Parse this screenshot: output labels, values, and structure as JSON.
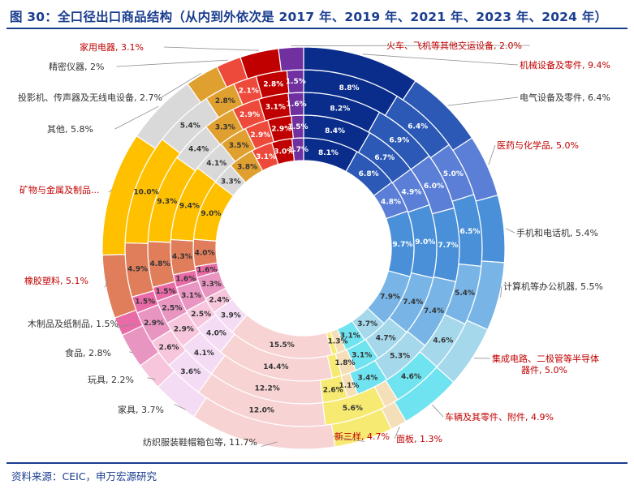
{
  "title": "图 30：全口径出口商品结构（从内到外依次是 2017 年、2019 年、2021 年、2023 年、2024 年）",
  "source": "资料来源：CEIC，申万宏源研究",
  "chart_data": {
    "type": "pie",
    "subtype": "multi-ring donut",
    "rings_inner_to_outer": [
      "2017 年",
      "2019 年",
      "2021 年",
      "2023 年",
      "2024 年"
    ],
    "direction": "clockwise from top",
    "categories": [
      {
        "name": "机械设备及零件",
        "outer_label": "机械设备及零件, 9.4%",
        "color": "#0a2d8c",
        "label_color": "#c00000",
        "values": [
          8.1,
          8.4,
          8.2,
          8.8,
          9.4
        ]
      },
      {
        "name": "电气设备及零件",
        "outer_label": "电气设备及零件, 6.4%",
        "color": "#2b59b5",
        "label_color": "#333333",
        "values": [
          6.8,
          6.7,
          6.9,
          6.4,
          6.4
        ]
      },
      {
        "name": "医药与化学品",
        "outer_label": "医药与化学品, 5.0%",
        "color": "#5b7fd6",
        "label_color": "#c00000",
        "values": [
          4.8,
          4.9,
          6.0,
          5.0,
          5.0
        ]
      },
      {
        "name": "手机和电话机",
        "outer_label": "手机和电话机, 5.4%",
        "color": "#4a90d9",
        "label_color": "#333333",
        "values": [
          9.7,
          9.0,
          7.7,
          6.5,
          5.4
        ]
      },
      {
        "name": "计算机等办公机器",
        "outer_label": "计算机等办公机器, 5.5%",
        "color": "#78b5e6",
        "label_color": "#333333",
        "values": [
          7.9,
          7.4,
          7.4,
          5.4,
          5.5
        ]
      },
      {
        "name": "集成电路、二极管等半导体器件",
        "outer_label": "集成电路、二极管等半导体器件, 5.0%",
        "color": "#a6d8ec",
        "label_color": "#c00000",
        "values": [
          3.7,
          4.7,
          5.3,
          4.6,
          5.0
        ]
      },
      {
        "name": "车辆及其零件、附件",
        "outer_label": "车辆及其零件、附件, 4.9%",
        "color": "#6fe3ef",
        "label_color": "#c00000",
        "values": [
          3.1,
          3.1,
          3.4,
          4.6,
          4.9
        ]
      },
      {
        "name": "面板",
        "outer_label": "面板, 1.3%",
        "color": "#f5dfb8",
        "label_color": "#c00000",
        "values": [
          1.3,
          1.8,
          1.1,
          1.3,
          1.3
        ]
      },
      {
        "name": "新三样",
        "outer_label": "新三样, 4.7%",
        "color": "#f7ea72",
        "label_color": "#c00000",
        "values": [
          0.8,
          1.2,
          2.6,
          5.6,
          4.7
        ]
      },
      {
        "name": "纺织服装鞋帽箱包等",
        "outer_label": "纺织服装鞋帽箱包等, 11.7%",
        "color": "#f8d3d3",
        "label_color": "#333333",
        "values": [
          15.5,
          14.4,
          12.2,
          12.0,
          11.7
        ]
      },
      {
        "name": "家具",
        "outer_label": "家具, 3.7%",
        "color": "#f5dcf5",
        "label_color": "#333333",
        "values": [
          3.9,
          4.0,
          4.1,
          3.6,
          3.7
        ]
      },
      {
        "name": "玩具",
        "outer_label": "玩具, 2.2%",
        "color": "#f7c6dc",
        "label_color": "#333333",
        "values": [
          2.4,
          2.5,
          2.9,
          2.6,
          2.2
        ]
      },
      {
        "name": "食品",
        "outer_label": "食品, 2.8%",
        "color": "#e895c1",
        "label_color": "#333333",
        "values": [
          3.3,
          3.1,
          2.5,
          2.9,
          2.8
        ]
      },
      {
        "name": "木制品及纸制品",
        "outer_label": "木制品及纸制品, 1.5%",
        "color": "#e86aa6",
        "label_color": "#333333",
        "values": [
          1.6,
          1.6,
          1.5,
          1.5,
          1.5
        ]
      },
      {
        "name": "橡胶塑料",
        "outer_label": "橡胶塑料, 5.1%",
        "color": "#e07e5b",
        "label_color": "#c00000",
        "values": [
          4.0,
          4.3,
          4.8,
          4.9,
          5.1
        ]
      },
      {
        "name": "矿物与金属及制品",
        "outer_label": "矿物与金属及制品...",
        "color": "#ffc000",
        "label_color": "#c00000",
        "values": [
          9.0,
          9.4,
          9.3,
          10.0,
          10.0
        ]
      },
      {
        "name": "其他",
        "outer_label": "其他, 5.8%",
        "color": "#d9d9d9",
        "label_color": "#333333",
        "values": [
          3.3,
          4.1,
          4.4,
          5.4,
          5.8
        ]
      },
      {
        "name": "投影机、传声器及无线电设备",
        "outer_label": "投影机、传声器及无线电设备, 2.7%",
        "color": "#e0a030",
        "label_color": "#333333",
        "values": [
          3.8,
          3.5,
          3.3,
          2.8,
          2.7
        ]
      },
      {
        "name": "精密仪器",
        "outer_label": "精密仪器, 2%",
        "color": "#ee4a3c",
        "label_color": "#333333",
        "values": [
          3.1,
          2.9,
          2.9,
          2.1,
          2.0
        ]
      },
      {
        "name": "家用电器",
        "outer_label": "家用电器, 3.1%",
        "color": "#c00000",
        "label_color": "#c00000",
        "values": [
          3.0,
          2.9,
          3.1,
          2.8,
          3.1
        ]
      },
      {
        "name": "火车、飞机等其他交运设备",
        "outer_label": "火车、飞机等其他交运设备, 2.0%",
        "color": "#7030a0",
        "label_color": "#c00000",
        "values": [
          1.7,
          1.5,
          1.6,
          1.5,
          2.0
        ]
      }
    ],
    "segment_labels": {
      "机械设备及零件": [
        "8.1%",
        "8.4%",
        "8.2%",
        "8.8%",
        ""
      ],
      "电气设备及零件": [
        "6.8%",
        "6.7%",
        "6.9%",
        "6.4%",
        ""
      ],
      "医药与化学品": [
        "4.8%",
        "4.9%",
        "6.0%",
        "5.0%",
        ""
      ],
      "手机和电话机": [
        "9.7%",
        "9.0%",
        "7.7%",
        "6.5%",
        ""
      ],
      "计算机等办公机器": [
        "7.9%",
        "7.4%",
        "7.4%",
        "5.4%",
        ""
      ],
      "集成电路、二极管等半导体器件": [
        "3.7%",
        "4.7%",
        "5.3%",
        "4.6%",
        ""
      ],
      "车辆及其零件、附件": [
        "3.1%",
        "3.1%",
        "3.4%",
        "4.6%",
        ""
      ],
      "面板": [
        "1.3%",
        "1.8%",
        "1.1%",
        "",
        ""
      ],
      "新三样": [
        "",
        "",
        "2.6%",
        "5.6%",
        ""
      ],
      "纺织服装鞋帽箱包等": [
        "15.5%",
        "14.4%",
        "12.2%",
        "12.0%",
        ""
      ],
      "家具": [
        "3.9%",
        "4.0%",
        "4.1%",
        "3.6%",
        ""
      ],
      "玩具": [
        "2.4%",
        "2.5%",
        "2.9%",
        "2.6%",
        ""
      ],
      "食品": [
        "3.3%",
        "3.1%",
        "2.5%",
        "2.9%",
        ""
      ],
      "木制品及纸制品": [
        "1.6%",
        "1.6%",
        "1.5%",
        "1.5%",
        ""
      ],
      "橡胶塑料": [
        "4.0%",
        "4.3%",
        "4.8%",
        "4.9%",
        ""
      ],
      "矿物与金属及制品": [
        "9.0%",
        "9.4%",
        "9.3%",
        "10.0%",
        ""
      ],
      "其他": [
        "3.3%",
        "4.1%",
        "4.4%",
        "5.4%",
        ""
      ],
      "投影机、传声器及无线电设备": [
        "3.8%",
        "3.5%",
        "3.3%",
        "2.8%",
        ""
      ],
      "精密仪器": [
        "3.1%",
        "2.9%",
        "2.9%",
        "2.1%",
        ""
      ],
      "家用电器": [
        "3.0%",
        "2.9%",
        "3.1%",
        "2.8%",
        ""
      ],
      "火车、飞机等其他交运设备": [
        "1.7%",
        "1.5%",
        "1.6%",
        "1.5%",
        ""
      ]
    },
    "legend": "none",
    "grid": false
  }
}
